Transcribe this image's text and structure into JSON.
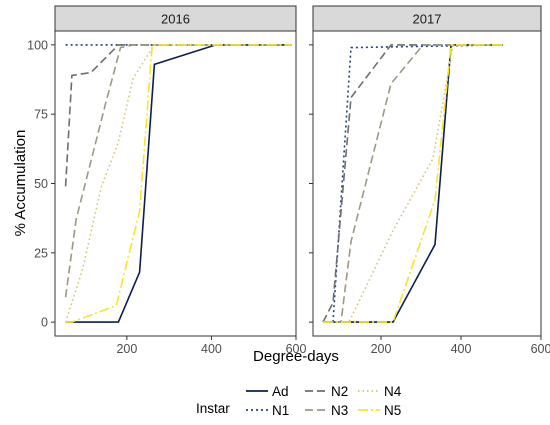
{
  "chart_data": {
    "type": "line",
    "xlabel": "Degree-days",
    "ylabel": "% Accumulation",
    "xlim": [
      30,
      600
    ],
    "ylim": [
      -5,
      105
    ],
    "xticks": [
      200,
      400,
      600
    ],
    "yticks": [
      0,
      25,
      50,
      75,
      100
    ],
    "grid": false,
    "legend": {
      "title": "Instar",
      "placement": "bottom",
      "entries": [
        "Ad",
        "N1",
        "N2",
        "N3",
        "N4",
        "N5"
      ]
    },
    "series_styles": {
      "Ad": {
        "color": "#0b1e4f",
        "dash": ""
      },
      "N1": {
        "color": "#1f3f8a",
        "dash": "2,3"
      },
      "N2": {
        "color": "#6e6e6e",
        "dash": "8,4"
      },
      "N3": {
        "color": "#9c9882",
        "dash": "8,4"
      },
      "N4": {
        "color": "#d4c66a",
        "dash": "1.5,3"
      },
      "N5": {
        "color": "#fbe32a",
        "dash": "10,3,2,3"
      }
    },
    "panels": [
      {
        "strip": "2016",
        "series": [
          {
            "name": "Ad",
            "x": [
              55,
              180,
              230,
              265,
              410,
              590
            ],
            "y": [
              0,
              0,
              18,
              93,
              100,
              100
            ]
          },
          {
            "name": "N1",
            "x": [
              55,
              590
            ],
            "y": [
              100,
              100
            ]
          },
          {
            "name": "N2",
            "x": [
              55,
              70,
              115,
              180,
              590
            ],
            "y": [
              49,
              89,
              90,
              100,
              100
            ]
          },
          {
            "name": "N3",
            "x": [
              55,
              80,
              150,
              185,
              215,
              590
            ],
            "y": [
              9,
              37,
              79,
              99,
              100,
              100
            ]
          },
          {
            "name": "N4",
            "x": [
              55,
              95,
              140,
              180,
              215,
              265,
              590
            ],
            "y": [
              0,
              19,
              49,
              65,
              88,
              100,
              100
            ]
          },
          {
            "name": "N5",
            "x": [
              55,
              70,
              175,
              230,
              260,
              590
            ],
            "y": [
              0,
              0,
              6,
              40,
              100,
              100
            ]
          }
        ]
      },
      {
        "strip": "2017",
        "series": [
          {
            "name": "Ad",
            "x": [
              55,
              230,
              335,
              375,
              505
            ],
            "y": [
              0,
              0,
              28,
              100,
              100
            ]
          },
          {
            "name": "N1",
            "x": [
              55,
              80,
              125,
              505
            ],
            "y": [
              0,
              0,
              99,
              100
            ]
          },
          {
            "name": "N2",
            "x": [
              55,
              80,
              125,
              225,
              505
            ],
            "y": [
              0,
              7,
              81,
              100,
              100
            ]
          },
          {
            "name": "N3",
            "x": [
              55,
              100,
              125,
              225,
              305,
              505
            ],
            "y": [
              0,
              0,
              29,
              86,
              100,
              100
            ]
          },
          {
            "name": "N4",
            "x": [
              55,
              120,
              230,
              330,
              380,
              505
            ],
            "y": [
              0,
              0,
              33,
              59,
              100,
              100
            ]
          },
          {
            "name": "N5",
            "x": [
              55,
              230,
              335,
              375,
              505
            ],
            "y": [
              0,
              0,
              44,
              100,
              100
            ]
          }
        ]
      }
    ]
  }
}
